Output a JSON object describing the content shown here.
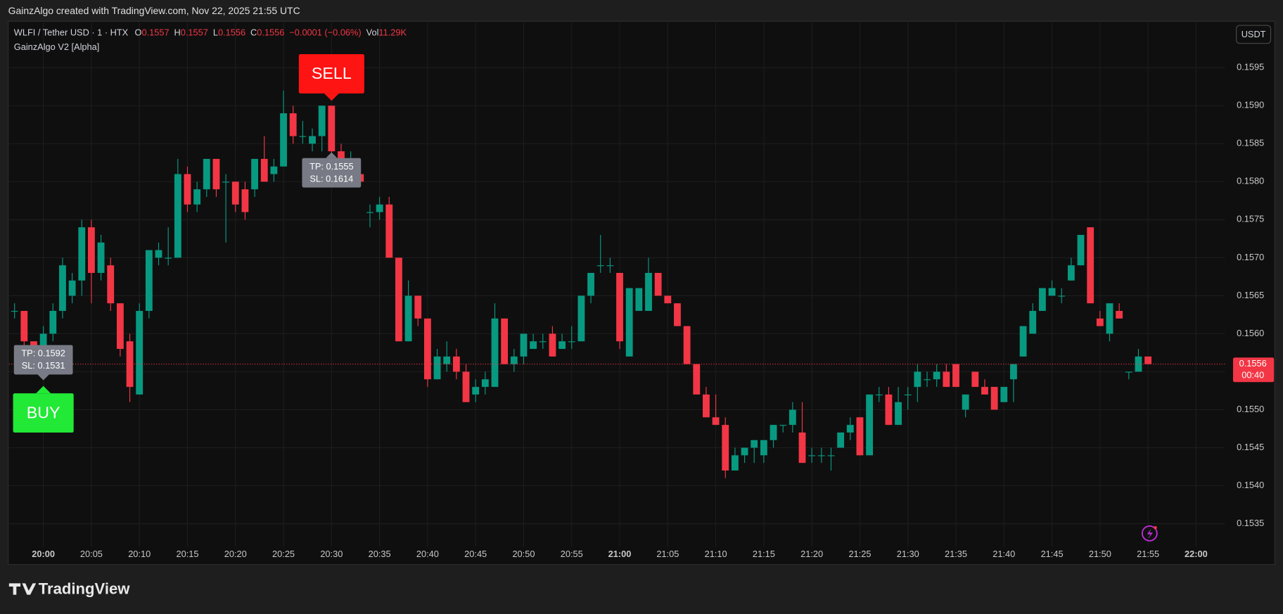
{
  "chart_data": {
    "type": "candlestick",
    "caption": "GainzAlgo created with TradingView.com, Nov 22, 2025 21:55 UTC",
    "header": {
      "symbol": "WLFI / Tether USD · 1 · HTX",
      "fields": [
        {
          "label": "O",
          "value": "0.1557"
        },
        {
          "label": "H",
          "value": "0.1557"
        },
        {
          "label": "L",
          "value": "0.1556"
        },
        {
          "label": "C",
          "value": "0.1556"
        }
      ],
      "change": "−0.0001 (−0.06%)",
      "volume_label": "Vol",
      "volume": "11.29K"
    },
    "indicator": "GainzAlgo V2 [Alpha]",
    "currency": "USDT",
    "countdown": "00:40",
    "brand": "TradingView",
    "up_color": "#089981",
    "down_color": "#f23645",
    "grid": true,
    "x": [
      "19:57",
      "19:58",
      "19:59",
      "20:00",
      "20:01",
      "20:02",
      "20:03",
      "20:04",
      "20:05",
      "20:06",
      "20:07",
      "20:08",
      "20:09",
      "20:10",
      "20:11",
      "20:12",
      "20:13",
      "20:14",
      "20:15",
      "20:16",
      "20:17",
      "20:18",
      "20:19",
      "20:20",
      "20:21",
      "20:22",
      "20:23",
      "20:24",
      "20:25",
      "20:26",
      "20:27",
      "20:28",
      "20:29",
      "20:30",
      "20:31",
      "20:32",
      "20:33",
      "20:34",
      "20:35",
      "20:36",
      "20:37",
      "20:38",
      "20:39",
      "20:40",
      "20:41",
      "20:42",
      "20:43",
      "20:44",
      "20:45",
      "20:46",
      "20:47",
      "20:48",
      "20:49",
      "20:50",
      "20:51",
      "20:52",
      "20:53",
      "20:54",
      "20:55",
      "20:56",
      "20:57",
      "20:58",
      "20:59",
      "21:00",
      "21:01",
      "21:02",
      "21:03",
      "21:04",
      "21:05",
      "21:06",
      "21:07",
      "21:08",
      "21:09",
      "21:10",
      "21:11",
      "21:12",
      "21:13",
      "21:14",
      "21:15",
      "21:16",
      "21:17",
      "21:18",
      "21:19",
      "21:20",
      "21:21",
      "21:22",
      "21:23",
      "21:24",
      "21:25",
      "21:26",
      "21:27",
      "21:28",
      "21:29",
      "21:30",
      "21:31",
      "21:32",
      "21:33",
      "21:34",
      "21:35",
      "21:36",
      "21:37",
      "21:38",
      "21:39",
      "21:40",
      "21:41",
      "21:42",
      "21:43",
      "21:44",
      "21:45",
      "21:46",
      "21:47",
      "21:48",
      "21:49",
      "21:50",
      "21:51",
      "21:52",
      "21:53",
      "21:54",
      "21:55"
    ],
    "ohlc": [
      [
        0.1563,
        0.1564,
        0.1562,
        0.1563
      ],
      [
        0.1563,
        0.1563,
        0.1558,
        0.1559
      ],
      [
        0.1559,
        0.1559,
        0.1555,
        0.1556
      ],
      [
        0.1558,
        0.1561,
        0.1557,
        0.156
      ],
      [
        0.156,
        0.1564,
        0.1559,
        0.1563
      ],
      [
        0.1563,
        0.157,
        0.1562,
        0.1569
      ],
      [
        0.1565,
        0.1568,
        0.1564,
        0.1567
      ],
      [
        0.1567,
        0.1575,
        0.1565,
        0.1574
      ],
      [
        0.1574,
        0.1575,
        0.1564,
        0.1568
      ],
      [
        0.1568,
        0.1573,
        0.1567,
        0.1572
      ],
      [
        0.1569,
        0.157,
        0.1563,
        0.1564
      ],
      [
        0.1564,
        0.1564,
        0.1557,
        0.1558
      ],
      [
        0.1559,
        0.156,
        0.1551,
        0.1553
      ],
      [
        0.1552,
        0.1564,
        0.1552,
        0.1563
      ],
      [
        0.1563,
        0.1571,
        0.1562,
        0.1571
      ],
      [
        0.157,
        0.1572,
        0.1569,
        0.1571
      ],
      [
        0.157,
        0.1574,
        0.1569,
        0.157
      ],
      [
        0.157,
        0.1583,
        0.157,
        0.1581
      ],
      [
        0.1581,
        0.1582,
        0.1576,
        0.1577
      ],
      [
        0.1577,
        0.158,
        0.1576,
        0.1579
      ],
      [
        0.1579,
        0.1583,
        0.1578,
        0.1583
      ],
      [
        0.1583,
        0.1583,
        0.1578,
        0.1579
      ],
      [
        0.158,
        0.1581,
        0.1572,
        0.158
      ],
      [
        0.158,
        0.158,
        0.1576,
        0.1577
      ],
      [
        0.1579,
        0.158,
        0.1575,
        0.1576
      ],
      [
        0.1579,
        0.1583,
        0.1578,
        0.1583
      ],
      [
        0.1583,
        0.1586,
        0.158,
        0.158
      ],
      [
        0.1581,
        0.1583,
        0.158,
        0.1582
      ],
      [
        0.1582,
        0.1592,
        0.1582,
        0.1589
      ],
      [
        0.1589,
        0.159,
        0.1585,
        0.1586
      ],
      [
        0.1586,
        0.1588,
        0.1585,
        0.1586
      ],
      [
        0.1585,
        0.1587,
        0.1584,
        0.1586
      ],
      [
        0.1586,
        0.159,
        0.1584,
        0.159
      ],
      [
        0.159,
        0.159,
        0.1583,
        0.1584
      ],
      [
        0.1584,
        0.1585,
        0.1582,
        0.1583
      ],
      [
        0.1583,
        0.1584,
        0.1582,
        0.1583
      ],
      [
        0.1581,
        0.1582,
        0.158,
        0.158
      ],
      [
        0.1576,
        0.1577,
        0.1574,
        0.1576
      ],
      [
        0.1576,
        0.1578,
        0.1575,
        0.1577
      ],
      [
        0.1577,
        0.1578,
        0.157,
        0.157
      ],
      [
        0.157,
        0.157,
        0.1559,
        0.1559
      ],
      [
        0.1559,
        0.1567,
        0.1559,
        0.1565
      ],
      [
        0.1565,
        0.1565,
        0.1561,
        0.1562
      ],
      [
        0.1562,
        0.1562,
        0.1553,
        0.1554
      ],
      [
        0.1554,
        0.1558,
        0.1554,
        0.1557
      ],
      [
        0.1556,
        0.1559,
        0.1555,
        0.1557
      ],
      [
        0.1557,
        0.1558,
        0.1554,
        0.1555
      ],
      [
        0.1555,
        0.1556,
        0.1551,
        0.1551
      ],
      [
        0.1552,
        0.1554,
        0.1551,
        0.1553
      ],
      [
        0.1553,
        0.1555,
        0.1552,
        0.1554
      ],
      [
        0.1553,
        0.1564,
        0.1553,
        0.1562
      ],
      [
        0.1562,
        0.1562,
        0.1556,
        0.1556
      ],
      [
        0.1556,
        0.1558,
        0.1555,
        0.1557
      ],
      [
        0.1557,
        0.156,
        0.1556,
        0.156
      ],
      [
        0.1558,
        0.156,
        0.1558,
        0.1559
      ],
      [
        0.1559,
        0.156,
        0.1558,
        0.1559
      ],
      [
        0.156,
        0.1561,
        0.1557,
        0.1557
      ],
      [
        0.1558,
        0.156,
        0.1558,
        0.1559
      ],
      [
        0.1559,
        0.1561,
        0.1558,
        0.1559
      ],
      [
        0.1559,
        0.1565,
        0.1559,
        0.1565
      ],
      [
        0.1565,
        0.1568,
        0.1564,
        0.1568
      ],
      [
        0.1569,
        0.1573,
        0.1568,
        0.1569
      ],
      [
        0.1569,
        0.157,
        0.1568,
        0.1569
      ],
      [
        0.1568,
        0.1568,
        0.1558,
        0.1559
      ],
      [
        0.1557,
        0.1566,
        0.1557,
        0.1566
      ],
      [
        0.1563,
        0.1566,
        0.1563,
        0.1566
      ],
      [
        0.1563,
        0.157,
        0.1563,
        0.1568
      ],
      [
        0.1568,
        0.1568,
        0.1565,
        0.1565
      ],
      [
        0.1565,
        0.1565,
        0.1564,
        0.1564
      ],
      [
        0.1564,
        0.1564,
        0.1561,
        0.1561
      ],
      [
        0.1561,
        0.1561,
        0.1556,
        0.1556
      ],
      [
        0.1556,
        0.1556,
        0.1552,
        0.1552
      ],
      [
        0.1552,
        0.1553,
        0.1549,
        0.1549
      ],
      [
        0.1549,
        0.1552,
        0.1548,
        0.1548
      ],
      [
        0.1548,
        0.1549,
        0.1541,
        0.1542
      ],
      [
        0.1542,
        0.1545,
        0.1542,
        0.1544
      ],
      [
        0.1544,
        0.1545,
        0.1543,
        0.1545
      ],
      [
        0.1545,
        0.1546,
        0.1543,
        0.1546
      ],
      [
        0.1544,
        0.1546,
        0.1543,
        0.1546
      ],
      [
        0.1546,
        0.1548,
        0.1545,
        0.1548
      ],
      [
        0.1548,
        0.1548,
        0.1547,
        0.1548
      ],
      [
        0.1548,
        0.1551,
        0.1547,
        0.155
      ],
      [
        0.1547,
        0.1551,
        0.1543,
        0.1543
      ],
      [
        0.1544,
        0.1545,
        0.1543,
        0.1544
      ],
      [
        0.1544,
        0.1545,
        0.1543,
        0.1544
      ],
      [
        0.1544,
        0.1545,
        0.1542,
        0.1544
      ],
      [
        0.1545,
        0.1547,
        0.1545,
        0.1547
      ],
      [
        0.1547,
        0.1549,
        0.1546,
        0.1548
      ],
      [
        0.1549,
        0.1549,
        0.1544,
        0.1544
      ],
      [
        0.1544,
        0.1552,
        0.1544,
        0.1552
      ],
      [
        0.1552,
        0.1553,
        0.1551,
        0.1552
      ],
      [
        0.1552,
        0.1553,
        0.1548,
        0.1548
      ],
      [
        0.1548,
        0.1553,
        0.1548,
        0.1551
      ],
      [
        0.1552,
        0.1553,
        0.155,
        0.1552
      ],
      [
        0.1553,
        0.1556,
        0.1551,
        0.1555
      ],
      [
        0.1554,
        0.1555,
        0.1553,
        0.1554
      ],
      [
        0.1554,
        0.1556,
        0.1553,
        0.1555
      ],
      [
        0.1555,
        0.1556,
        0.1553,
        0.1553
      ],
      [
        0.1556,
        0.1556,
        0.1553,
        0.1553
      ],
      [
        0.155,
        0.1552,
        0.1549,
        0.1552
      ],
      [
        0.1555,
        0.1555,
        0.1553,
        0.1553
      ],
      [
        0.1553,
        0.1554,
        0.1552,
        0.1552
      ],
      [
        0.1553,
        0.1553,
        0.155,
        0.155
      ],
      [
        0.1551,
        0.1553,
        0.1551,
        0.1553
      ],
      [
        0.1554,
        0.1556,
        0.1551,
        0.1556
      ],
      [
        0.1557,
        0.1561,
        0.1557,
        0.1561
      ],
      [
        0.156,
        0.1564,
        0.156,
        0.1563
      ],
      [
        0.1563,
        0.1566,
        0.1563,
        0.1566
      ],
      [
        0.1565,
        0.1567,
        0.1565,
        0.1566
      ],
      [
        0.1565,
        0.1566,
        0.1564,
        0.1565
      ],
      [
        0.1567,
        0.157,
        0.1567,
        0.1569
      ],
      [
        0.1569,
        0.1573,
        0.1569,
        0.1573
      ],
      [
        0.1574,
        0.1574,
        0.1564,
        0.1564
      ],
      [
        0.1562,
        0.1563,
        0.1561,
        0.1561
      ],
      [
        0.156,
        0.1564,
        0.1559,
        0.1564
      ],
      [
        0.1563,
        0.1564,
        0.1562,
        0.1562
      ],
      [
        0.1555,
        0.1555,
        0.1554,
        0.1555
      ],
      [
        0.1555,
        0.1558,
        0.1555,
        0.1557
      ],
      [
        0.1557,
        0.1557,
        0.1556,
        0.1556
      ]
    ],
    "xlim": [
      "19:56",
      "22:03"
    ],
    "xticks": [
      "20:00",
      "20:05",
      "20:10",
      "20:15",
      "20:20",
      "20:25",
      "20:30",
      "20:35",
      "20:40",
      "20:45",
      "20:50",
      "20:55",
      "21:00",
      "21:05",
      "21:10",
      "21:15",
      "21:20",
      "21:25",
      "21:30",
      "21:35",
      "21:40",
      "21:45",
      "21:50",
      "21:55",
      "22:00"
    ],
    "ylim": [
      0.1532,
      0.1601
    ],
    "yticks": [
      0.1535,
      {
        "value": 0.154,
        "label": "0.1540"
      },
      0.1545,
      {
        "value": 0.155,
        "label": "0.1550"
      },
      0.1555,
      {
        "value": 0.156,
        "label": "0.1560"
      },
      0.1565,
      {
        "value": 0.157,
        "label": "0.1570"
      },
      0.1575,
      {
        "value": 0.158,
        "label": "0.1580"
      },
      0.1585,
      {
        "value": 0.159,
        "label": "0.1590"
      },
      0.1595
    ],
    "signals": [
      {
        "label": "BUY",
        "x": "20:00",
        "side": "below",
        "color": "#22e836",
        "tp": "TP: 0.1592",
        "sl": "SL: 0.1531"
      },
      {
        "label": "SELL",
        "x": "20:30",
        "side": "above",
        "color": "#ff1414",
        "tp": "TP: 0.1555",
        "sl": "SL: 0.1614"
      }
    ]
  }
}
